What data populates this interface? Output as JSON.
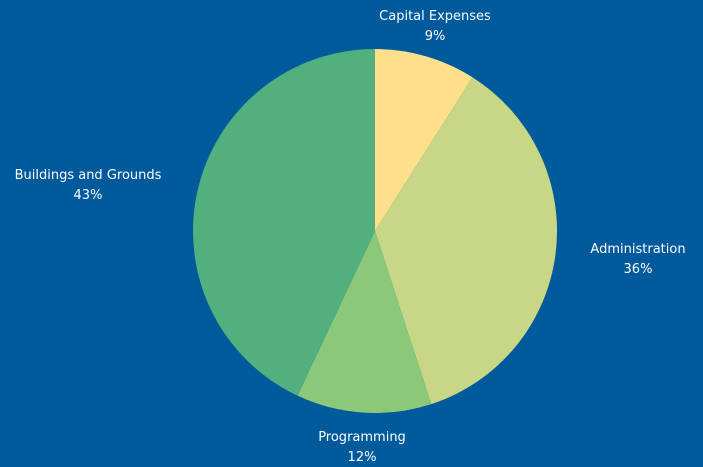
{
  "chart_data": {
    "type": "pie",
    "slices": [
      {
        "label": "Capital Expenses",
        "value": 9,
        "value_label": "9%",
        "color": "#fee08b"
      },
      {
        "label": "Administration",
        "value": 36,
        "value_label": "36%",
        "color": "#c8d785"
      },
      {
        "label": "Programming",
        "value": 12,
        "value_label": "12%",
        "color": "#8cc87a"
      },
      {
        "label": "Buildings and Grounds",
        "value": 43,
        "value_label": "43%",
        "color": "#52b07e"
      }
    ],
    "start_angle": "12 o'clock",
    "direction": "clockwise",
    "background": "#005a9c",
    "legend": "none",
    "label_color": "#ffffff"
  }
}
